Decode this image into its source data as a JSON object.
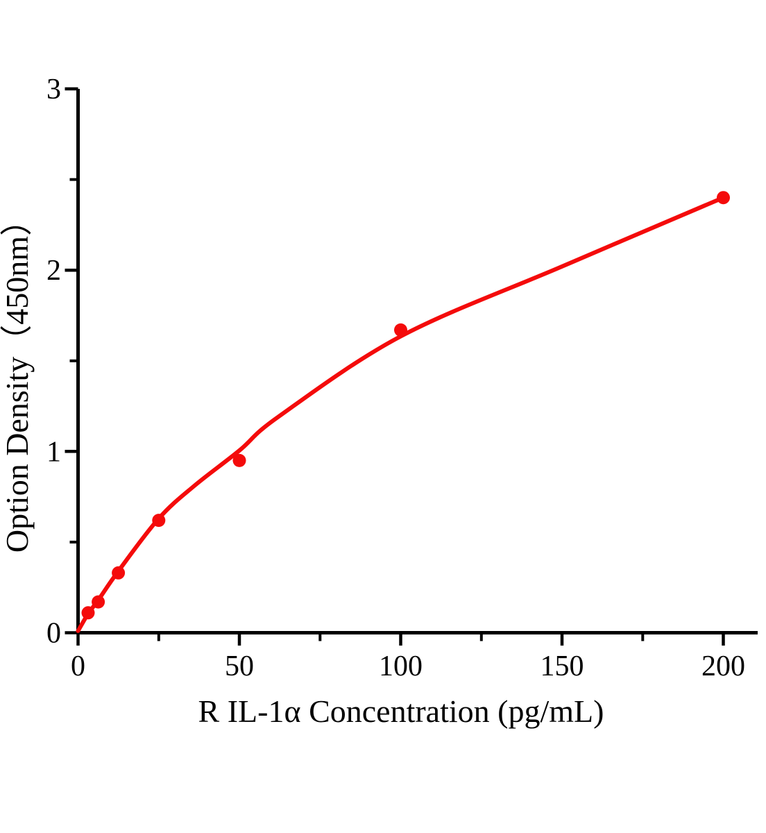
{
  "page": {
    "background_color": "#ffffff",
    "axis_color": "#000000",
    "accent_color": "#f40b0b"
  },
  "chart_data": {
    "type": "scatter",
    "title": "",
    "xlabel": "R IL-1α Concentration (pg/mL)",
    "ylabel": "Option Density（450nm）",
    "xlim": [
      0,
      210
    ],
    "ylim": [
      0,
      3
    ],
    "grid": false,
    "legend": false,
    "x_axis": {
      "major_ticks": [
        0,
        50,
        100,
        150,
        200
      ],
      "major_tick_labels": [
        "0",
        "50",
        "100",
        "150",
        "200"
      ],
      "minor_ticks": [
        25,
        75,
        125,
        175
      ]
    },
    "y_axis": {
      "major_ticks": [
        0,
        1,
        2,
        3
      ],
      "major_tick_labels": [
        "0",
        "1",
        "2",
        "3"
      ],
      "minor_ticks": [
        0.5,
        1.5,
        2.5
      ]
    },
    "series": [
      {
        "name": "standard-points",
        "type": "scatter",
        "marker": "circle",
        "color": "#f40b0b",
        "points": [
          {
            "x": 3.125,
            "y": 0.11
          },
          {
            "x": 6.25,
            "y": 0.17
          },
          {
            "x": 12.5,
            "y": 0.33
          },
          {
            "x": 25,
            "y": 0.62
          },
          {
            "x": 50,
            "y": 0.95
          },
          {
            "x": 100,
            "y": 1.67
          },
          {
            "x": 200,
            "y": 2.4
          }
        ]
      },
      {
        "name": "fit-curve",
        "type": "line",
        "color": "#f40b0b",
        "x": [
          0,
          3.125,
          6.25,
          12.5,
          25,
          36,
          50,
          62,
          100,
          150,
          200
        ],
        "y": [
          0.01,
          0.105,
          0.18,
          0.34,
          0.63,
          0.81,
          1.005,
          1.19,
          1.635,
          2.02,
          2.4
        ]
      }
    ]
  }
}
